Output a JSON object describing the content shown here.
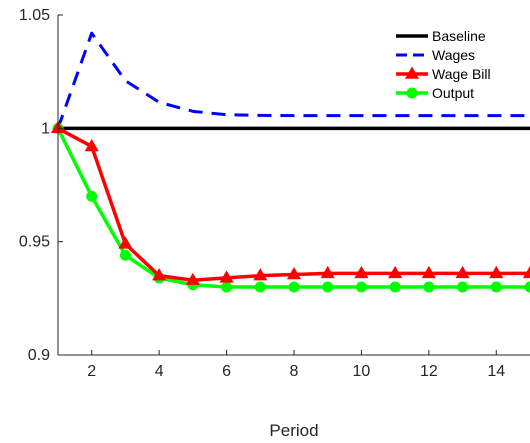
{
  "chart_data": {
    "type": "line",
    "title": "",
    "xlabel": "Period",
    "ylabel": "",
    "xlim": [
      1,
      15
    ],
    "ylim": [
      0.9,
      1.05
    ],
    "x_ticks": [
      2,
      4,
      6,
      8,
      10,
      12,
      14
    ],
    "y_ticks": [
      0.9,
      0.95,
      1,
      1.05
    ],
    "y_tick_labels": [
      "0.9",
      "0.95",
      "1",
      "1.05"
    ],
    "grid": false,
    "legend_position": "top-right",
    "x": [
      1,
      2,
      3,
      4,
      5,
      6,
      7,
      8,
      9,
      10,
      11,
      12,
      13,
      14,
      15
    ],
    "series": [
      {
        "name": "Baseline",
        "color": "#000000",
        "style": "solid",
        "marker": "none",
        "values": [
          1,
          1,
          1,
          1,
          1,
          1,
          1,
          1,
          1,
          1,
          1,
          1,
          1,
          1,
          1
        ]
      },
      {
        "name": "Wages",
        "color": "#0000ff",
        "style": "dashed",
        "marker": "none",
        "values": [
          1.0,
          1.042,
          1.021,
          1.0115,
          1.0075,
          1.006,
          1.0057,
          1.0056,
          1.0056,
          1.0056,
          1.0056,
          1.0056,
          1.0056,
          1.0056,
          1.0056
        ]
      },
      {
        "name": "Wage Bill",
        "color": "#ff0000",
        "style": "solid",
        "marker": "triangle",
        "values": [
          1.0,
          0.992,
          0.949,
          0.935,
          0.933,
          0.934,
          0.935,
          0.9355,
          0.936,
          0.936,
          0.936,
          0.936,
          0.936,
          0.936,
          0.936
        ]
      },
      {
        "name": "Output",
        "color": "#00ff00",
        "style": "solid",
        "marker": "circle",
        "values": [
          1.0,
          0.97,
          0.944,
          0.934,
          0.931,
          0.93,
          0.93,
          0.93,
          0.93,
          0.93,
          0.93,
          0.93,
          0.93,
          0.93,
          0.93
        ]
      }
    ]
  }
}
